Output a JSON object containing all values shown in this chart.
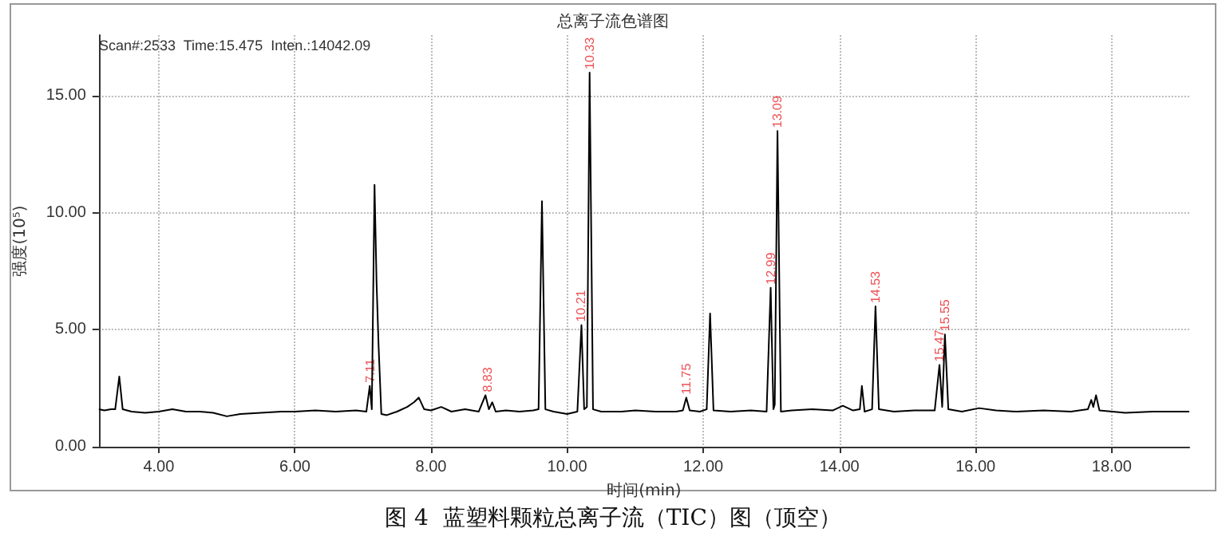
{
  "chart_data": {
    "type": "line",
    "title": "总离子流色谱图",
    "xlabel": "时间(min)",
    "ylabel": "强度(10⁵)",
    "x": [
      3.12,
      3.2,
      3.3,
      3.36,
      3.42,
      3.47,
      3.6,
      3.8,
      4.0,
      4.2,
      4.4,
      4.6,
      4.8,
      5.0,
      5.2,
      5.5,
      5.8,
      6.0,
      6.3,
      6.6,
      6.9,
      7.05,
      7.1,
      7.13,
      7.17,
      7.2,
      7.23,
      7.27,
      7.35,
      7.5,
      7.65,
      7.75,
      7.82,
      7.9,
      8.0,
      8.15,
      8.3,
      8.5,
      8.7,
      8.8,
      8.85,
      8.9,
      8.95,
      9.1,
      9.3,
      9.5,
      9.58,
      9.63,
      9.68,
      9.8,
      10.0,
      10.15,
      10.21,
      10.25,
      10.29,
      10.33,
      10.38,
      10.5,
      10.8,
      11.0,
      11.3,
      11.6,
      11.7,
      11.75,
      11.8,
      11.95,
      12.05,
      12.1,
      12.15,
      12.4,
      12.7,
      12.93,
      12.99,
      13.03,
      13.05,
      13.09,
      13.14,
      13.3,
      13.6,
      13.9,
      14.05,
      14.2,
      14.3,
      14.33,
      14.37,
      14.48,
      14.53,
      14.58,
      14.8,
      15.1,
      15.4,
      15.47,
      15.51,
      15.55,
      15.6,
      15.8,
      16.05,
      16.3,
      16.6,
      17.0,
      17.4,
      17.65,
      17.7,
      17.73,
      17.77,
      17.82,
      18.2,
      18.6,
      19.0,
      19.14
    ],
    "series": [
      {
        "color": "#000000",
        "values": [
          1.6,
          1.55,
          1.6,
          1.6,
          3.0,
          1.6,
          1.5,
          1.45,
          1.5,
          1.6,
          1.5,
          1.5,
          1.45,
          1.3,
          1.4,
          1.45,
          1.5,
          1.5,
          1.55,
          1.5,
          1.55,
          1.5,
          2.6,
          1.6,
          11.2,
          7.0,
          4.3,
          1.4,
          1.35,
          1.5,
          1.7,
          1.9,
          2.1,
          1.6,
          1.55,
          1.7,
          1.5,
          1.6,
          1.5,
          2.2,
          1.6,
          1.9,
          1.5,
          1.55,
          1.5,
          1.55,
          1.6,
          10.5,
          1.6,
          1.5,
          1.4,
          1.5,
          5.2,
          1.6,
          1.7,
          16.0,
          1.6,
          1.5,
          1.5,
          1.55,
          1.5,
          1.5,
          1.55,
          2.1,
          1.55,
          1.5,
          1.6,
          5.7,
          1.55,
          1.5,
          1.55,
          1.5,
          6.8,
          1.6,
          1.8,
          13.5,
          1.5,
          1.55,
          1.6,
          1.55,
          1.75,
          1.55,
          1.6,
          2.6,
          1.5,
          1.6,
          6.0,
          1.6,
          1.5,
          1.55,
          1.55,
          3.5,
          1.7,
          4.8,
          1.6,
          1.5,
          1.65,
          1.55,
          1.5,
          1.55,
          1.5,
          1.6,
          2.0,
          1.7,
          2.2,
          1.55,
          1.45,
          1.5,
          1.5,
          1.5
        ]
      }
    ],
    "xlim": [
      3.12,
      19.14
    ],
    "ylim": [
      0,
      17.6
    ],
    "xticks": [
      {
        "value": 4,
        "label": "4.00"
      },
      {
        "value": 6,
        "label": "6.00"
      },
      {
        "value": 8,
        "label": "8.00"
      },
      {
        "value": 10,
        "label": "10.00"
      },
      {
        "value": 12,
        "label": "12.00"
      },
      {
        "value": 14,
        "label": "14.00"
      },
      {
        "value": 16,
        "label": "16.00"
      },
      {
        "value": 18,
        "label": "18.00"
      }
    ],
    "yticks": [
      {
        "value": 0,
        "label": "0.00"
      },
      {
        "value": 5,
        "label": "5.00"
      },
      {
        "value": 10,
        "label": "10.00"
      },
      {
        "value": 15,
        "label": "15.00"
      }
    ],
    "grid": true,
    "marker": "none",
    "line_style": "solid",
    "annotations": [
      "Scan#:2533  Time:15.475  Inten.:14042.09",
      "图 4  蓝塑料颗粒总离子流（TIC）图（顶空）",
      {
        "text": "7.11",
        "x": 7.11,
        "y": 2.6
      },
      {
        "text": "8.83",
        "x": 8.83,
        "y": 2.2
      },
      {
        "text": "10.21",
        "x": 10.21,
        "y": 5.2
      },
      {
        "text": "10.33",
        "x": 10.33,
        "y": 16.0
      },
      {
        "text": "11.75",
        "x": 11.75,
        "y": 2.1
      },
      {
        "text": "12.99",
        "x": 12.99,
        "y": 6.8
      },
      {
        "text": "13.09",
        "x": 13.09,
        "y": 13.5
      },
      {
        "text": "14.53",
        "x": 14.53,
        "y": 6.0
      },
      {
        "text": "15.47",
        "x": 15.47,
        "y": 3.5
      },
      {
        "text": "15.55",
        "x": 15.55,
        "y": 4.8
      }
    ]
  }
}
